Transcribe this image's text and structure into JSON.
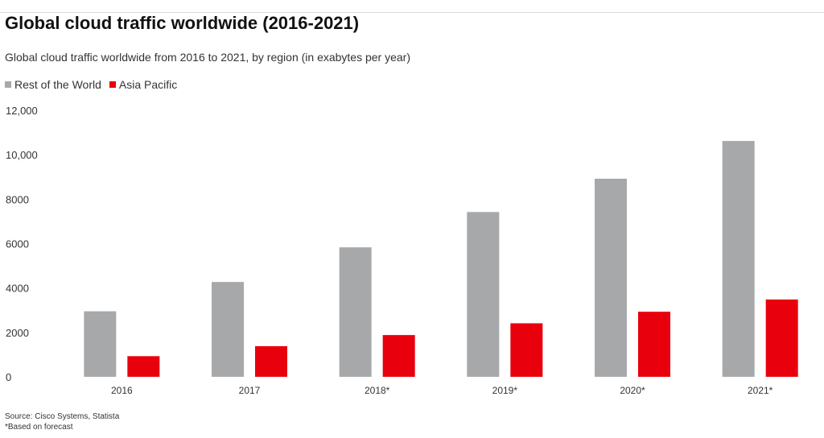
{
  "header": {
    "title": "Global cloud traffic worldwide (2016-2021)",
    "subtitle": "Global cloud traffic worldwide from 2016 to 2021, by region (in exabytes per year)"
  },
  "legend": {
    "items": [
      {
        "label": "Rest of the World",
        "color": "#a7a8aa"
      },
      {
        "label": "Asia Pacific",
        "color": "#e8000d"
      }
    ]
  },
  "chart_data": {
    "type": "bar",
    "title": "Global cloud traffic worldwide (2016-2021)",
    "subtitle": "Global cloud traffic worldwide from 2016 to 2021, by region (in exabytes per year)",
    "categories": [
      "2016",
      "2017",
      "2018*",
      "2019*",
      "2020*",
      "2021*"
    ],
    "series": [
      {
        "name": "Rest of the World",
        "color": "#a7a8aa",
        "values": [
          2950,
          4270,
          5830,
          7420,
          8920,
          10620
        ]
      },
      {
        "name": "Asia Pacific",
        "color": "#e8000d",
        "values": [
          930,
          1380,
          1880,
          2410,
          2930,
          3480
        ]
      }
    ],
    "ylim": [
      0,
      12000
    ],
    "yticks": [
      0,
      2000,
      4000,
      6000,
      8000,
      10000,
      12000
    ],
    "ytick_labels": [
      "0",
      "2000",
      "4000",
      "6000",
      "8000",
      "10,000",
      "12,000"
    ],
    "xlabel": "",
    "ylabel": "",
    "grid": false,
    "legend_position": "top-left"
  },
  "footer": {
    "source": "Source: Cisco Systems, Statista",
    "note": "*Based on forecast"
  }
}
